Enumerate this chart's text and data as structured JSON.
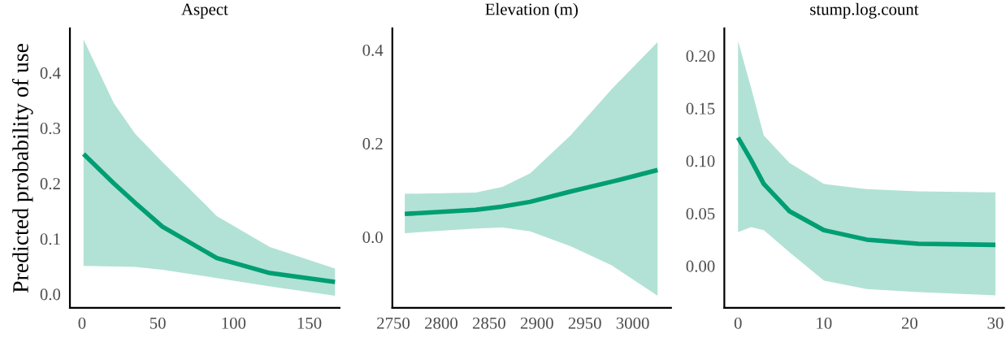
{
  "chart_data": [
    {
      "type": "line",
      "title": "Aspect",
      "ylabel": "Predicted probability of use",
      "xlim": [
        -8,
        170
      ],
      "ylim": [
        -0.025,
        0.48
      ],
      "xticks": [
        0,
        50,
        100,
        150
      ],
      "yticks": [
        {
          "value": 0,
          "label": "0.0"
        },
        {
          "value": 0.1,
          "label": "0.1"
        },
        {
          "value": 0.2,
          "label": "0.2"
        },
        {
          "value": 0.3,
          "label": "0.3"
        },
        {
          "value": 0.4,
          "label": "0.4"
        }
      ],
      "grid": false,
      "x": [
        1,
        21,
        35,
        53,
        89,
        124,
        167
      ],
      "series": [
        {
          "color": "#009e73",
          "values": [
            0.253,
            0.2,
            0.165,
            0.122,
            0.065,
            0.038,
            0.022
          ],
          "lower": [
            0.051,
            0.05,
            0.049,
            0.044,
            0.029,
            0.014,
            -0.003
          ],
          "upper": [
            0.46,
            0.345,
            0.29,
            0.239,
            0.141,
            0.085,
            0.046
          ]
        }
      ]
    },
    {
      "type": "line",
      "title": "Elevation (m)",
      "xlim": [
        2749,
        3040
      ],
      "ylim": [
        -0.152,
        0.446
      ],
      "xticks": [
        2750,
        2800,
        2850,
        2900,
        2950,
        3000
      ],
      "yticks": [
        {
          "value": 0,
          "label": "0.0"
        },
        {
          "value": 0.2,
          "label": "0.2"
        },
        {
          "value": 0.4,
          "label": "0.4"
        }
      ],
      "grid": false,
      "x": [
        2762,
        2836,
        2864,
        2893,
        2935,
        2978,
        3026
      ],
      "series": [
        {
          "color": "#009e73",
          "values": [
            0.049,
            0.058,
            0.065,
            0.075,
            0.097,
            0.118,
            0.143
          ],
          "lower": [
            0.008,
            0.018,
            0.02,
            0.012,
            -0.02,
            -0.061,
            -0.126
          ],
          "upper": [
            0.092,
            0.095,
            0.107,
            0.136,
            0.217,
            0.316,
            0.417
          ]
        }
      ]
    },
    {
      "type": "line",
      "title": "stump.log.count",
      "xlim": [
        -1.6,
        31
      ],
      "ylim": [
        -0.04,
        0.226
      ],
      "xticks": [
        0,
        10,
        20,
        30
      ],
      "yticks": [
        {
          "value": 0,
          "label": "0.00"
        },
        {
          "value": 0.05,
          "label": "0.05"
        },
        {
          "value": 0.1,
          "label": "0.10"
        },
        {
          "value": 0.15,
          "label": "0.15"
        },
        {
          "value": 0.2,
          "label": "0.20"
        }
      ],
      "grid": false,
      "x": [
        0,
        1.5,
        3,
        6,
        10,
        15,
        21,
        30
      ],
      "series": [
        {
          "color": "#009e73",
          "values": [
            0.122,
            0.101,
            0.078,
            0.052,
            0.034,
            0.025,
            0.021,
            0.02
          ],
          "lower": [
            0.032,
            0.037,
            0.034,
            0.013,
            -0.014,
            -0.022,
            -0.025,
            -0.028
          ],
          "upper": [
            0.214,
            0.17,
            0.124,
            0.098,
            0.078,
            0.073,
            0.071,
            0.07
          ]
        }
      ]
    }
  ]
}
